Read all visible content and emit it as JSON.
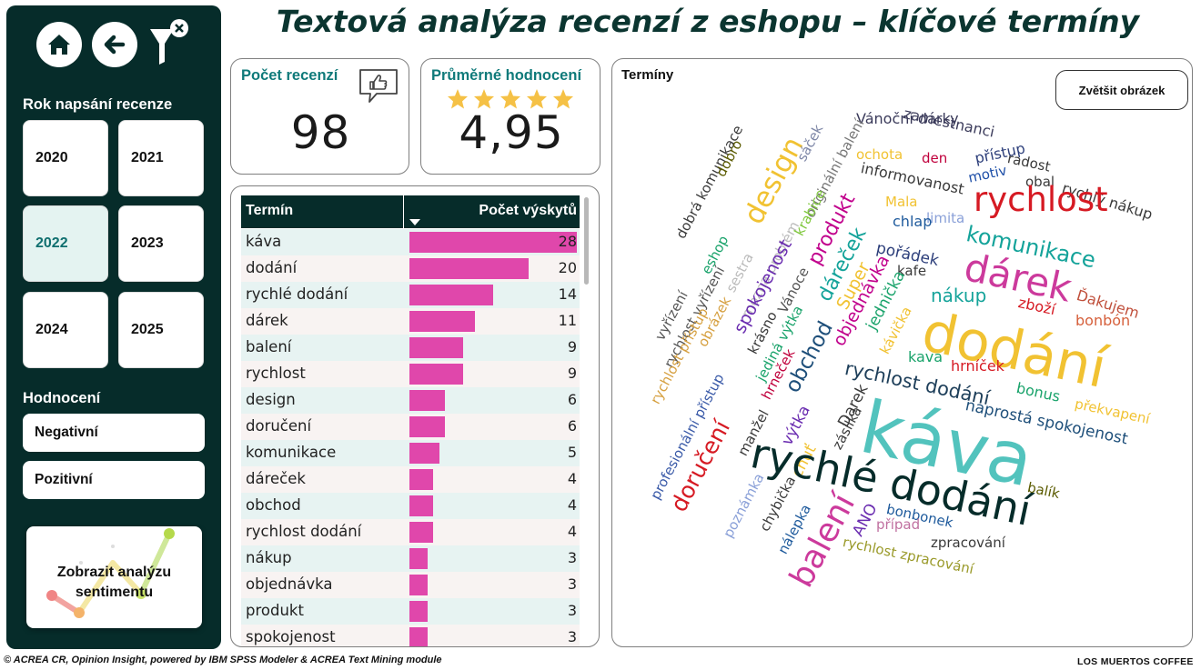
{
  "title": "Textová analýza recenzí z eshopu – klíčové termíny",
  "sidebar": {
    "year_section_title": "Rok napsání recenze",
    "years": [
      "2020",
      "2021",
      "2022",
      "2023",
      "2024",
      "2025"
    ],
    "selected_year": "2022",
    "rating_section_title": "Hodnocení",
    "ratings": [
      "Negativní",
      "Pozitivní"
    ],
    "sentiment_button": "Zobrazit analýzu sentimentu",
    "icons": [
      "home-icon",
      "back-arrow-icon",
      "clear-filter-icon"
    ]
  },
  "kpis": {
    "reviews_label": "Počet recenzí",
    "reviews_value": "98",
    "avg_label": "Průměrné hodnocení",
    "avg_value": "4,95",
    "stars": 5
  },
  "table": {
    "col_term": "Termín",
    "col_count": "Počet výskytů",
    "rows": [
      {
        "term": "káva",
        "count": 28
      },
      {
        "term": "dodání",
        "count": 20
      },
      {
        "term": "rychlé dodání",
        "count": 14
      },
      {
        "term": "dárek",
        "count": 11
      },
      {
        "term": "balení",
        "count": 9
      },
      {
        "term": "rychlost",
        "count": 9
      },
      {
        "term": "design",
        "count": 6
      },
      {
        "term": "doručení",
        "count": 6
      },
      {
        "term": "komunikace",
        "count": 5
      },
      {
        "term": "dáreček",
        "count": 4
      },
      {
        "term": "obchod",
        "count": 4
      },
      {
        "term": "rychlost dodání",
        "count": 4
      },
      {
        "term": "nákup",
        "count": 3
      },
      {
        "term": "objednávka",
        "count": 3
      },
      {
        "term": "produkt",
        "count": 3
      },
      {
        "term": "spokojenost",
        "count": 3
      }
    ],
    "bar_color": "#e047ab"
  },
  "cloud": {
    "title": "Termíny",
    "enlarge_button": "Zvětšit obrázek",
    "words": [
      "dobrá komunikace",
      "dobro",
      "design",
      "sáček",
      "Vánoční dárky",
      "zamestnanci",
      "originální balení",
      "ochota",
      "den",
      "přístup",
      "radost",
      "motiv",
      "obal",
      "rychlý nákup",
      "informovanost",
      "rychlost",
      "limita",
      "Mala",
      "chlap",
      "komunikace",
      "eshop",
      "sestra",
      "mozna problém",
      "krabice",
      "produkt",
      "dáreček",
      "pořádek",
      "kafe",
      "dárek",
      "spokojenost",
      "Vánoce",
      "Super",
      "objednávka",
      "nákup",
      "zboží",
      "Ďakujem",
      "bonbón",
      "vyřízení",
      "rychlost vyřízení",
      "obrázek",
      "krásno",
      "jediná výtka",
      "jednička",
      "kávička",
      "rychlost přístup",
      "hrneček",
      "obchod",
      "dodání",
      "kava",
      "hrníček",
      "rychlost dodání",
      "bonus",
      "profesionální přístup",
      "manžel",
      "výtka",
      "Darek",
      "chuť",
      "zásilka",
      "naprostá spokojenost",
      "překvapení",
      "doručení",
      "káva",
      "rychlé dodání",
      "poznámka",
      "chybička",
      "nálepka",
      "balík",
      "ANO",
      "balení",
      "bonbonek",
      "případ",
      "zpracování",
      "rychlost zpracování"
    ]
  },
  "footer": {
    "left": "© ACREA CR, Opinion Insight, powered by IBM SPSS Modeler & ACREA Text Mining module",
    "right": "LOS MUERTOS  COFFEE"
  }
}
